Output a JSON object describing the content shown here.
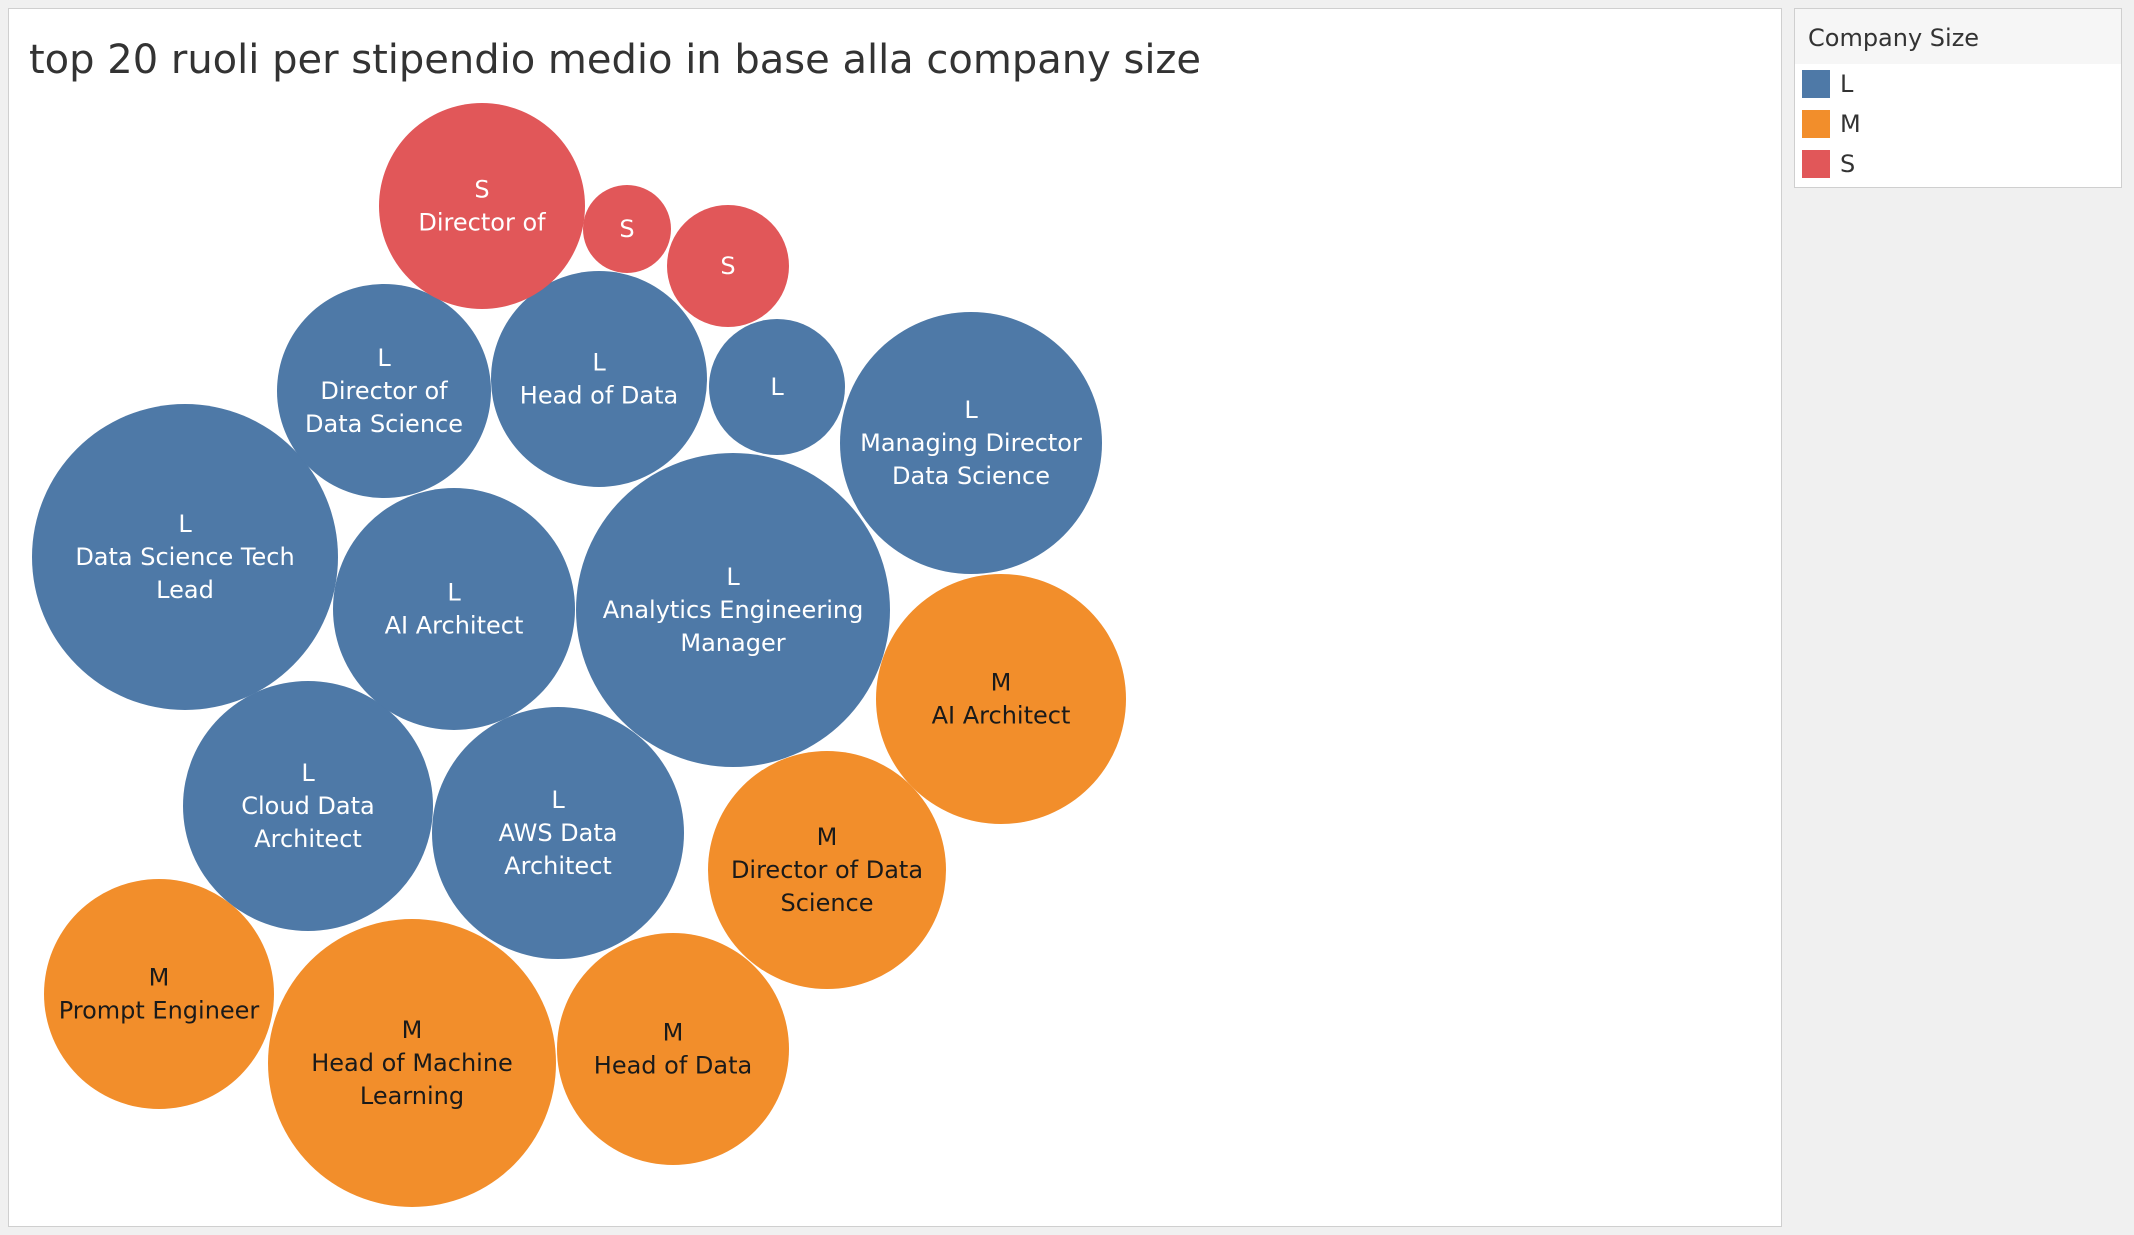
{
  "chart_data": {
    "type": "bubble",
    "title": "top 20 ruoli per stipendio medio in base alla company size",
    "legend": {
      "title": "Company Size",
      "placement": "right",
      "items": [
        {
          "label": "L",
          "color": "#4e79a7"
        },
        {
          "label": "M",
          "color": "#f28e2b"
        },
        {
          "label": "S",
          "color": "#e15759"
        }
      ]
    },
    "text_colors": {
      "L": "#ffffff",
      "M": "#1a1a1a",
      "S": "#ffffff"
    },
    "bubbles": [
      {
        "size": "L",
        "role": "Analytics Engineering Manager"
      },
      {
        "size": "L",
        "role": "Data Science Tech Lead"
      },
      {
        "size": "L",
        "role": "Managing Director Data Science"
      },
      {
        "size": "L",
        "role": "AWS Data Architect"
      },
      {
        "size": "L",
        "role": "Cloud Data Architect"
      },
      {
        "size": "L",
        "role": "AI Architect"
      },
      {
        "size": "L",
        "role": "Head of Data"
      },
      {
        "size": "L",
        "role": "Director of Data Science"
      },
      {
        "size": "L",
        "role": ""
      },
      {
        "size": "M",
        "role": "Head of Machine Learning"
      },
      {
        "size": "M",
        "role": "AI Architect"
      },
      {
        "size": "M",
        "role": "Director of Data Science"
      },
      {
        "size": "M",
        "role": "Head of Data"
      },
      {
        "size": "M",
        "role": "Prompt Engineer"
      },
      {
        "size": "S",
        "role": "Director of"
      },
      {
        "size": "S",
        "role": ""
      },
      {
        "size": "S",
        "role": ""
      }
    ]
  }
}
